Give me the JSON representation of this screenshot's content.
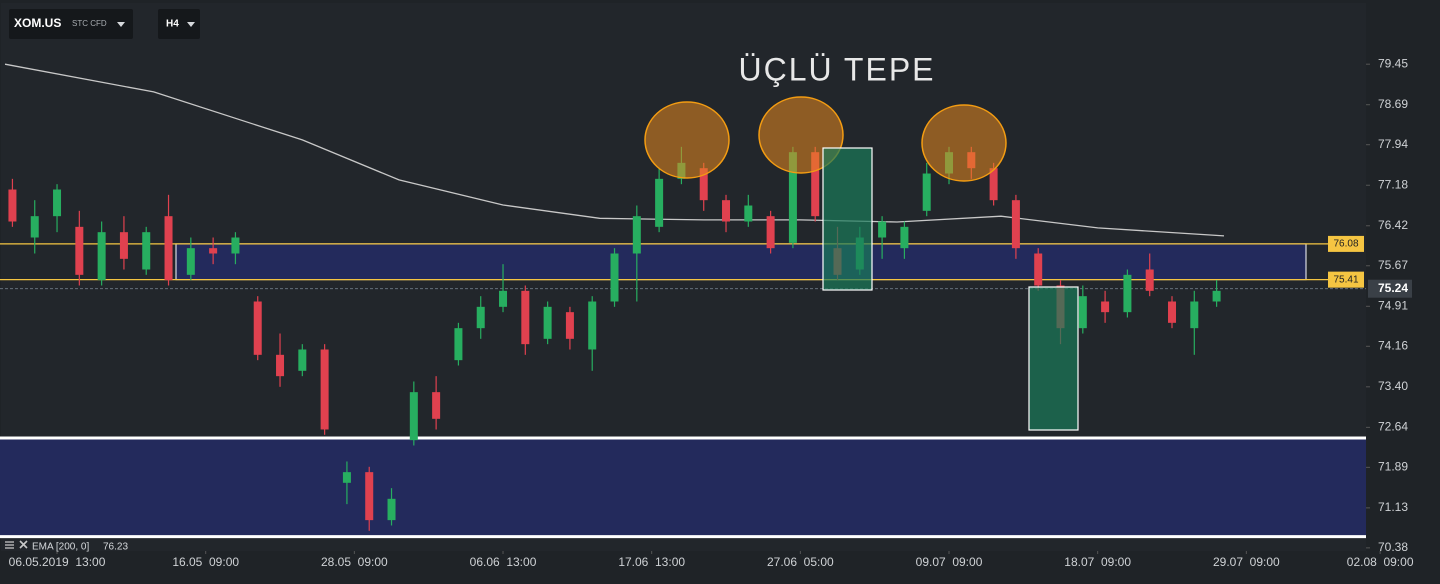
{
  "toolbar": {
    "symbol": "XOM.US",
    "instrument": "STC CFD",
    "timeframe": "H4"
  },
  "chart_data": {
    "type": "candlestick",
    "title": "ÜÇLÜ TEPE",
    "x": [
      1,
      4,
      7,
      10,
      13,
      16,
      19,
      22,
      25,
      28,
      31,
      34,
      37,
      40,
      43,
      46,
      49,
      52,
      55,
      58,
      61,
      64,
      67,
      70,
      73,
      76,
      79,
      82,
      85,
      88,
      91,
      94,
      97,
      100,
      103,
      106,
      109,
      112,
      115,
      118,
      121,
      124,
      127,
      130,
      133,
      136,
      139,
      142,
      145,
      148,
      151,
      154,
      157,
      160,
      163
    ],
    "open": [
      77.1,
      76.2,
      76.6,
      76.4,
      75.4,
      76.3,
      75.6,
      76.6,
      75.5,
      76.0,
      75.9,
      75.0,
      74.0,
      73.7,
      74.1,
      71.6,
      71.8,
      70.9,
      72.4,
      73.3,
      73.9,
      74.5,
      74.9,
      75.2,
      74.3,
      74.8,
      74.1,
      75.0,
      75.9,
      76.4,
      77.3,
      77.5,
      76.9,
      76.5,
      76.6,
      76.1,
      77.8,
      76.0,
      75.6,
      76.2,
      76.0,
      76.7,
      77.4,
      77.8,
      77.5,
      76.9,
      75.9,
      75.3,
      74.5,
      75.0,
      74.8,
      75.6,
      75.0,
      74.5,
      75.0
    ],
    "high": [
      77.3,
      76.9,
      77.2,
      76.7,
      76.5,
      76.6,
      76.4,
      77.0,
      76.2,
      76.2,
      76.3,
      75.1,
      74.4,
      74.2,
      74.2,
      72.0,
      71.9,
      71.5,
      73.5,
      73.6,
      74.6,
      75.1,
      75.7,
      75.3,
      75.0,
      74.9,
      75.1,
      76.0,
      76.8,
      77.5,
      77.9,
      77.6,
      77.0,
      77.0,
      76.7,
      77.9,
      77.9,
      76.4,
      76.4,
      76.6,
      76.5,
      77.6,
      77.9,
      77.9,
      77.6,
      77.0,
      76.0,
      75.4,
      75.3,
      75.2,
      75.6,
      75.9,
      75.1,
      75.2,
      75.4
    ],
    "low": [
      76.4,
      75.9,
      76.3,
      75.3,
      75.3,
      75.6,
      75.5,
      75.3,
      75.4,
      75.7,
      75.7,
      73.9,
      73.4,
      73.6,
      72.5,
      71.2,
      70.7,
      70.8,
      72.3,
      72.6,
      73.8,
      74.3,
      74.8,
      74.0,
      74.2,
      74.1,
      73.7,
      74.9,
      75.0,
      76.3,
      77.2,
      76.7,
      76.3,
      76.4,
      75.9,
      76.0,
      76.5,
      75.4,
      75.5,
      75.8,
      75.8,
      76.6,
      77.2,
      77.3,
      76.8,
      75.8,
      75.2,
      74.2,
      74.4,
      74.6,
      74.7,
      75.1,
      74.5,
      74.0,
      74.9
    ],
    "close": [
      76.5,
      76.6,
      77.1,
      75.5,
      76.3,
      75.8,
      76.3,
      75.4,
      76.0,
      75.9,
      76.2,
      74.0,
      73.6,
      74.1,
      72.6,
      71.8,
      70.9,
      71.3,
      73.3,
      72.8,
      74.5,
      74.9,
      75.2,
      74.2,
      74.9,
      74.3,
      75.0,
      75.9,
      76.6,
      77.3,
      77.6,
      76.9,
      76.5,
      76.8,
      76.0,
      77.8,
      76.6,
      75.5,
      76.2,
      76.5,
      76.4,
      77.4,
      77.8,
      77.5,
      76.9,
      76.0,
      75.3,
      74.5,
      75.1,
      74.8,
      75.5,
      75.2,
      74.6,
      75.0,
      75.2
    ],
    "up_color": "#27ae60",
    "down_color": "#e0414f",
    "ema": {
      "name": "EMA [200, 0]",
      "value": 76.23,
      "color": "#c8c8c8",
      "x": [
        0,
        20,
        40,
        53,
        67,
        80,
        94,
        107,
        120,
        134,
        147,
        164
      ],
      "values": [
        79.45,
        78.93,
        78.03,
        77.28,
        76.81,
        76.56,
        76.53,
        76.53,
        76.49,
        76.6,
        76.38,
        76.23
      ]
    },
    "levels": [
      {
        "value": 76.08,
        "color": "#f5c542"
      },
      {
        "value": 75.41,
        "color": "#f5c542"
      }
    ],
    "support_zone": [
      72.44,
      70.59
    ],
    "last_price": 75.24,
    "xlim": [
      0,
      187
    ],
    "ylim": [
      70.34,
      80.56
    ],
    "xticks": [
      {
        "value": 7,
        "label": "06.05.2019  13:00"
      },
      {
        "value": 27,
        "label": "16.05  09:00"
      },
      {
        "value": 47,
        "label": "28.05  09:00"
      },
      {
        "value": 67,
        "label": "06.06  13:00"
      },
      {
        "value": 87,
        "label": "17.06  13:00"
      },
      {
        "value": 107,
        "label": "27.06  05:00"
      },
      {
        "value": 127,
        "label": "09.07  09:00"
      },
      {
        "value": 147,
        "label": "18.07  09:00"
      },
      {
        "value": 167,
        "label": "29.07  09:00"
      },
      {
        "value": 185,
        "label": "02.08  09:00"
      }
    ],
    "yticks": [
      79.45,
      78.69,
      77.94,
      77.18,
      76.42,
      75.67,
      74.91,
      74.16,
      {
        "value": 73.4,
        "label": "73.40"
      },
      72.64,
      71.89,
      71.13,
      70.38
    ],
    "grid": false
  }
}
